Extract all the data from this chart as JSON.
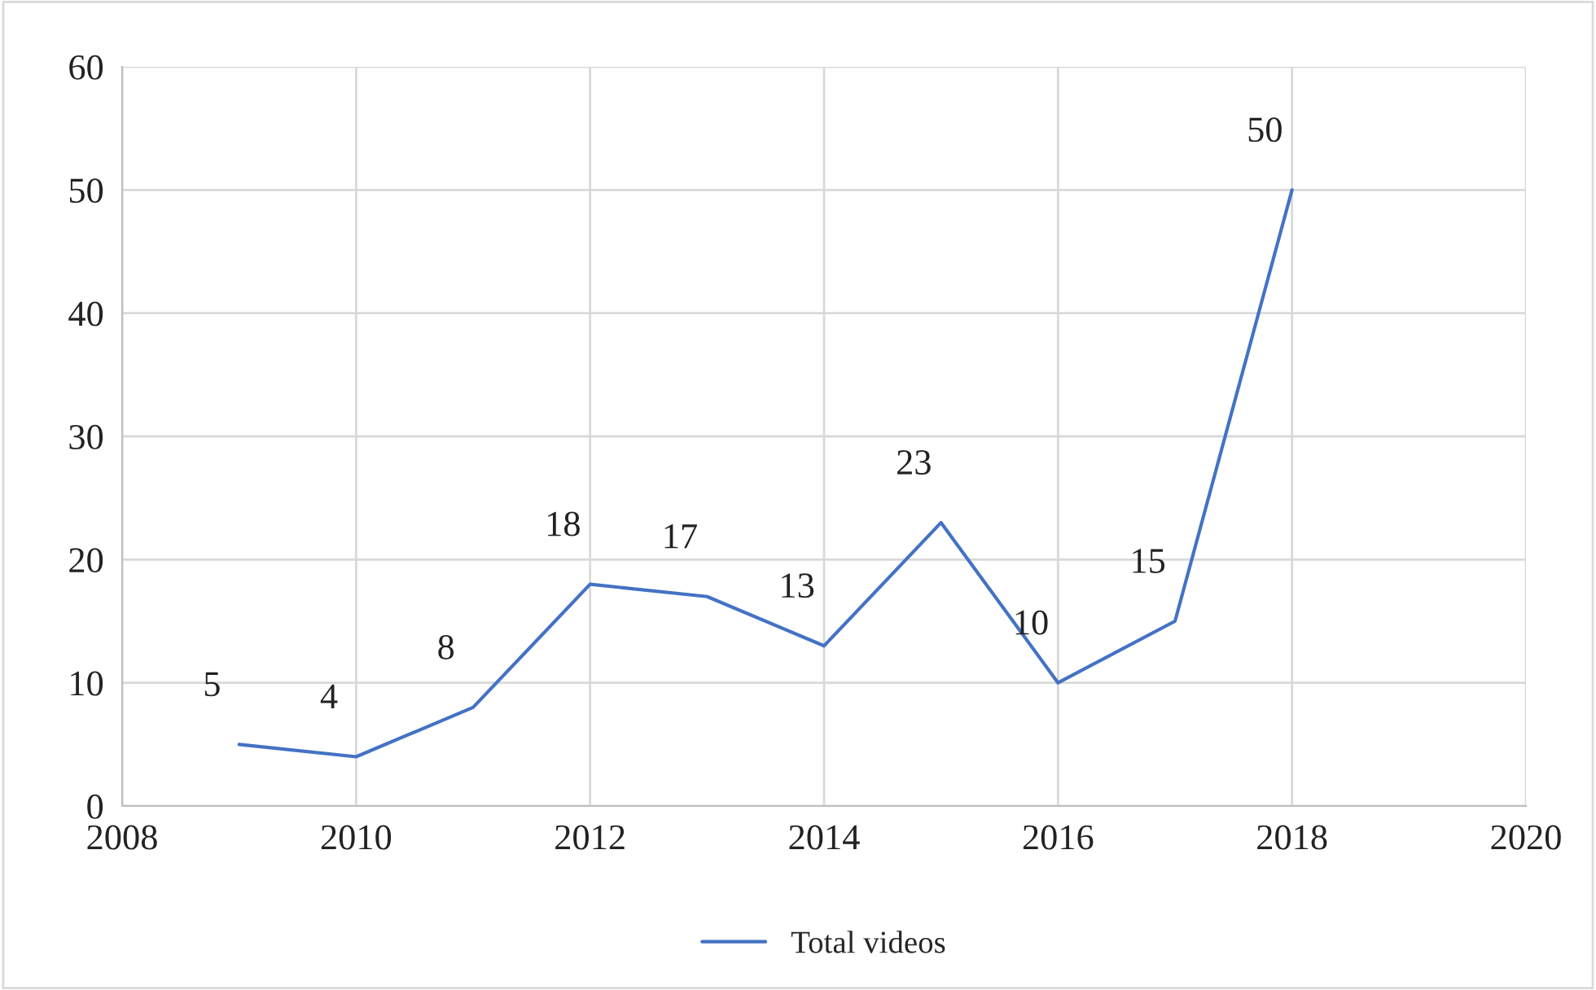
{
  "chart_data": {
    "type": "line",
    "x": [
      2009,
      2010,
      2011,
      2012,
      2013,
      2014,
      2015,
      2016,
      2017,
      2018
    ],
    "series": [
      {
        "name": "Total videos",
        "color": "#4472c4",
        "values": [
          5,
          4,
          8,
          18,
          17,
          13,
          23,
          10,
          15,
          50
        ]
      }
    ],
    "xlim": [
      2008,
      2020
    ],
    "xticks": [
      2008,
      2010,
      2012,
      2014,
      2016,
      2018,
      2020
    ],
    "ylim": [
      0,
      60
    ],
    "yticks": [
      0,
      10,
      20,
      30,
      40,
      50,
      60
    ],
    "grid": true,
    "legend": "bottom",
    "data_labels": true,
    "marker": "none",
    "line_style": "solid"
  }
}
